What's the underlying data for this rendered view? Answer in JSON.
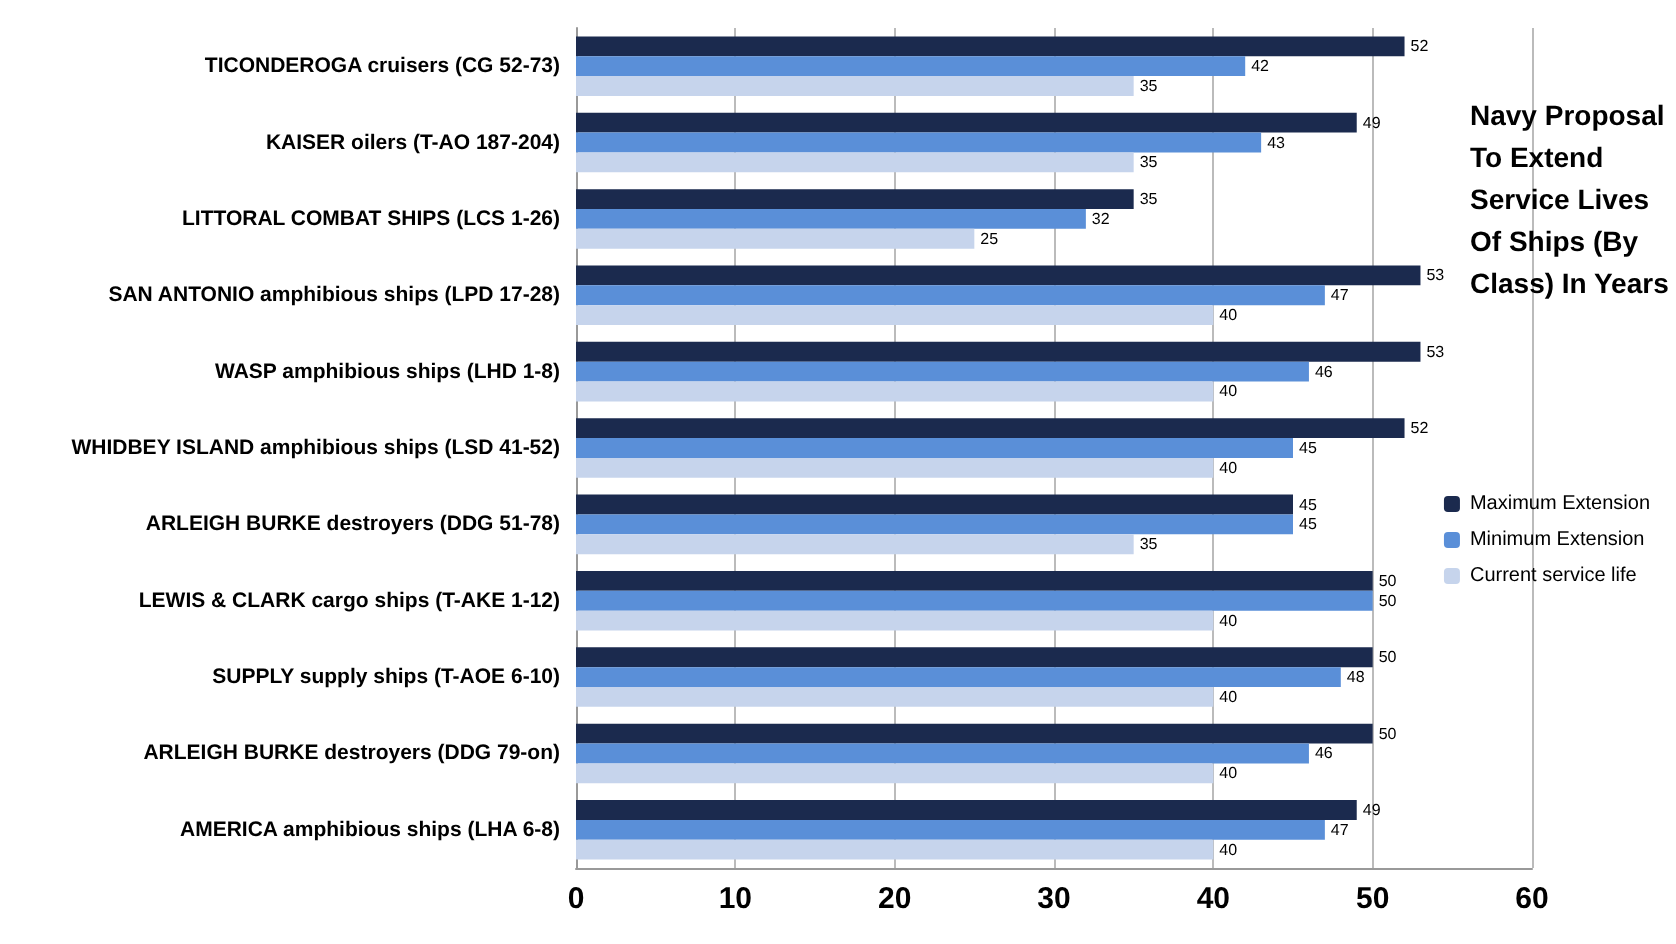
{
  "chart_data": {
    "type": "bar",
    "orientation": "horizontal",
    "title": "Navy Proposal To Extend Service Lives Of Ships (By Class) In Years",
    "categories": [
      "TICONDEROGA cruisers (CG 52-73)",
      "KAISER oilers (T-AO 187-204)",
      "LITTORAL COMBAT SHIPS (LCS 1-26)",
      "SAN ANTONIO amphibious ships (LPD 17-28)",
      "WASP amphibious ships (LHD 1-8)",
      "WHIDBEY ISLAND amphibious ships (LSD 41-52)",
      "ARLEIGH BURKE destroyers (DDG 51-78)",
      "LEWIS & CLARK cargo ships (T-AKE 1-12)",
      "SUPPLY supply ships (T-AOE 6-10)",
      "ARLEIGH BURKE destroyers (DDG 79-on)",
      "AMERICA amphibious ships (LHA 6-8)"
    ],
    "series": [
      {
        "name": "Maximum Extension",
        "color": "#1b2a4e",
        "values": [
          52,
          49,
          35,
          53,
          53,
          52,
          45,
          50,
          50,
          50,
          49
        ]
      },
      {
        "name": "Minimum Extension",
        "color": "#5a8fd8",
        "values": [
          42,
          43,
          32,
          47,
          46,
          45,
          45,
          50,
          48,
          46,
          47
        ]
      },
      {
        "name": "Current service life",
        "color": "#c6d4ec",
        "values": [
          35,
          35,
          25,
          40,
          40,
          40,
          35,
          40,
          40,
          40,
          40
        ]
      }
    ],
    "xlim": [
      0,
      60
    ],
    "xticks": [
      0,
      10,
      20,
      30,
      40,
      50,
      60
    ],
    "grid": "x",
    "legend": "right",
    "data_labels": true
  }
}
